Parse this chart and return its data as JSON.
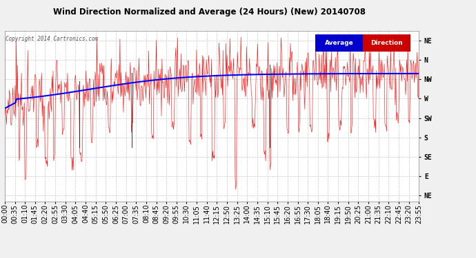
{
  "title": "Wind Direction Normalized and Average (24 Hours) (New) 20140708",
  "copyright_text": "Copyright 2014 Cartronics.com",
  "ytick_labels": [
    "NE",
    "N",
    "NW",
    "W",
    "SW",
    "S",
    "SE",
    "E",
    "NE"
  ],
  "ytick_values": [
    8,
    7,
    6,
    5,
    4,
    3,
    2,
    1,
    0
  ],
  "ylim": [
    -0.3,
    8.5
  ],
  "background_color": "#f0f0f0",
  "plot_bg_color": "#ffffff",
  "red_color": "#ff0000",
  "blue_color": "#0000ff",
  "black_color": "#000000",
  "grid_color": "#c8c8c8",
  "legend_avg_bg": "#0000cc",
  "legend_dir_bg": "#cc0000",
  "legend_text_color": "#ffffff",
  "time_labels": [
    "00:00",
    "00:35",
    "01:10",
    "01:45",
    "02:20",
    "02:55",
    "03:30",
    "04:05",
    "04:40",
    "05:15",
    "05:50",
    "06:25",
    "07:00",
    "07:35",
    "08:10",
    "08:45",
    "09:20",
    "09:55",
    "10:30",
    "11:05",
    "11:40",
    "12:15",
    "12:50",
    "13:25",
    "14:00",
    "14:35",
    "15:10",
    "15:45",
    "16:20",
    "16:55",
    "17:30",
    "18:05",
    "18:40",
    "19:15",
    "19:50",
    "20:25",
    "21:00",
    "21:35",
    "22:10",
    "22:45",
    "23:20",
    "23:55"
  ]
}
